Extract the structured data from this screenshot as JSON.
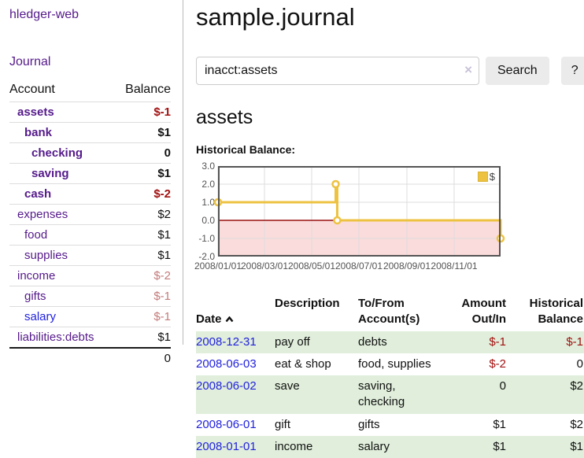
{
  "app": {
    "title": "hledger-web"
  },
  "sidebar": {
    "journal_link": "Journal",
    "headers": {
      "account": "Account",
      "balance": "Balance"
    },
    "accounts": [
      {
        "name": "assets",
        "balance": "$-1"
      },
      {
        "name": "bank",
        "balance": "$1"
      },
      {
        "name": "checking",
        "balance": "0"
      },
      {
        "name": "saving",
        "balance": "$1"
      },
      {
        "name": "cash",
        "balance": "$-2"
      },
      {
        "name": "expenses",
        "balance": "$2"
      },
      {
        "name": "food",
        "balance": "$1"
      },
      {
        "name": "supplies",
        "balance": "$1"
      },
      {
        "name": "income",
        "balance": "$-2"
      },
      {
        "name": "gifts",
        "balance": "$-1"
      },
      {
        "name": "salary",
        "balance": "$-1"
      },
      {
        "name": "liabilities:debts",
        "balance": "$1"
      }
    ],
    "total": "0"
  },
  "header": {
    "title": "sample.journal"
  },
  "search": {
    "value": "inacct:assets",
    "clear_icon": "×",
    "button_label": "Search",
    "help_label": "?"
  },
  "account_page": {
    "title": "assets",
    "chart_label": "Historical Balance:"
  },
  "chart_data": {
    "type": "line",
    "title": "Historical Balance:",
    "step": true,
    "series": [
      {
        "name": "$",
        "color": "#edc240",
        "points": [
          [
            "2008-01-01",
            1
          ],
          [
            "2008-06-01",
            2
          ],
          [
            "2008-06-03",
            0
          ],
          [
            "2008-12-31",
            -1
          ]
        ]
      }
    ],
    "xlim": [
      "2008-01-01",
      "2008-12-31"
    ],
    "ylim": [
      -2,
      3
    ],
    "x_ticks": [
      "2008/01/01",
      "2008/03/01",
      "2008/05/01",
      "2008/07/01",
      "2008/09/01",
      "2008/11/01"
    ],
    "y_ticks": [
      "3.0",
      "2.0",
      "1.0",
      "0.0",
      "-1.0",
      "-2.0"
    ],
    "grid": true,
    "legend_position": "top-right",
    "colors": {
      "negative_region": "#fbdcdc",
      "zero_line": "#991111",
      "gridline": "#dddddd",
      "border": "#545454"
    }
  },
  "transactions": {
    "headers": {
      "date": "Date",
      "description": "Description",
      "accounts": "To/From\nAccount(s)",
      "amount": "Amount\nOut/In",
      "balance": "Historical\nBalance"
    },
    "rows": [
      {
        "date": "2008-12-31",
        "description": "pay off",
        "accounts": "debts",
        "amount": "$-1",
        "balance": "$-1"
      },
      {
        "date": "2008-06-03",
        "description": "eat & shop",
        "accounts": "food, supplies",
        "amount": "$-2",
        "balance": "0"
      },
      {
        "date": "2008-06-02",
        "description": "save",
        "accounts": "saving, checking",
        "amount": "0",
        "balance": "$2"
      },
      {
        "date": "2008-06-01",
        "description": "gift",
        "accounts": "gifts",
        "amount": "$1",
        "balance": "$2"
      },
      {
        "date": "2008-01-01",
        "description": "income",
        "accounts": "salary",
        "amount": "$1",
        "balance": "$1"
      }
    ]
  }
}
